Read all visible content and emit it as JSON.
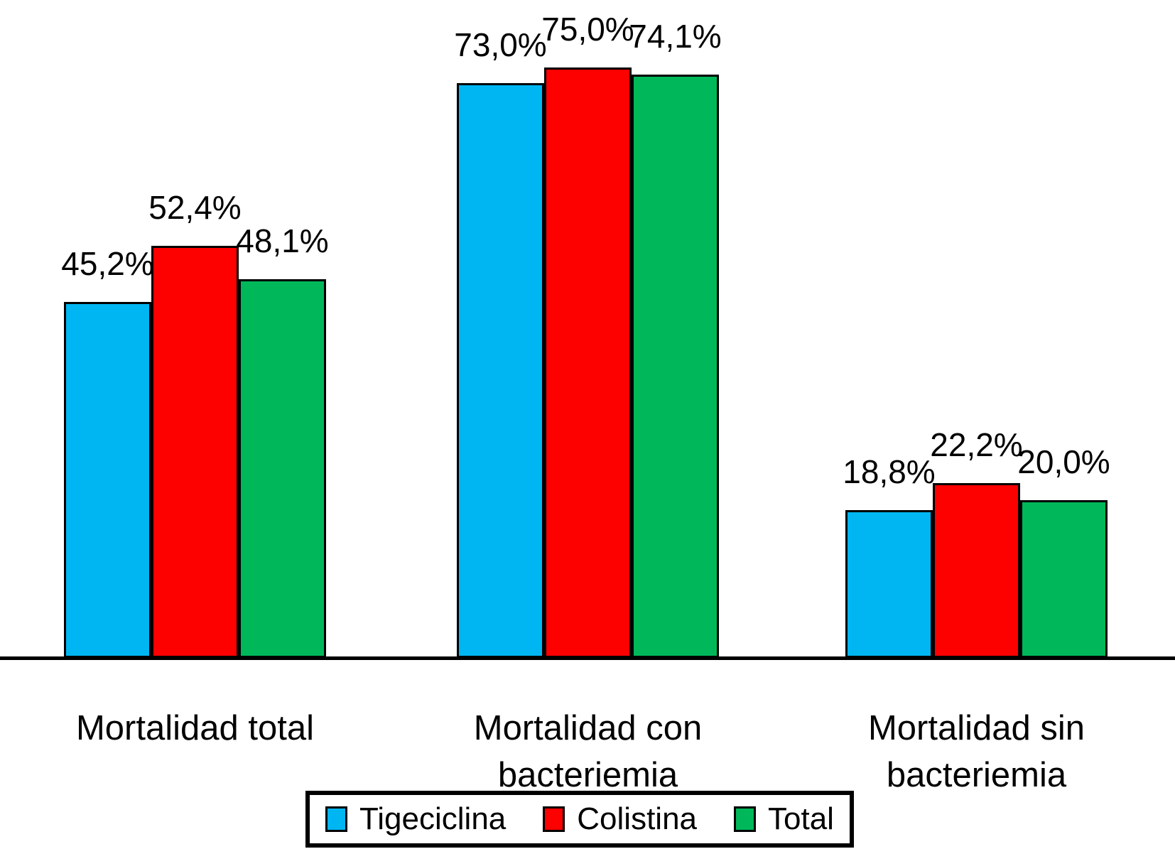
{
  "chart_data": {
    "type": "bar",
    "title": "",
    "xlabel": "",
    "ylabel": "",
    "ylim": [
      0,
      83.6
    ],
    "grid": false,
    "legend_position": "bottom",
    "value_suffix": "%",
    "decimal_separator": ",",
    "background_color": "#FFFFFF",
    "axis_color": "#000000",
    "bar_outline_color": "#000000",
    "categories": [
      "Mortalidad total",
      "Mortalidad con bacteriemia",
      "Mortalidad sin bacteriemia"
    ],
    "categories_lines": [
      [
        "Mortalidad total"
      ],
      [
        "Mortalidad con",
        "bacteriemia"
      ],
      [
        "Mortalidad sin",
        "bacteriemia"
      ]
    ],
    "series": [
      {
        "name": "Tigeciclina",
        "color": "#00B6F2",
        "values": [
          45.2,
          73.0,
          18.8
        ],
        "value_labels": [
          "45,2%",
          "73,0%",
          "18,8%"
        ]
      },
      {
        "name": "Colistina",
        "color": "#FD0000",
        "values": [
          52.4,
          75.0,
          22.2
        ],
        "value_labels": [
          "52,4%",
          "75,0%",
          "22,2%"
        ]
      },
      {
        "name": "Total",
        "color": "#00B85A",
        "values": [
          48.1,
          74.1,
          20.0
        ],
        "value_labels": [
          "48,1%",
          "74,1%",
          "20,0%"
        ]
      }
    ]
  },
  "legend": {
    "items": [
      {
        "label": "Tigeciclina",
        "color": "#00B6F2"
      },
      {
        "label": "Colistina",
        "color": "#FD0000"
      },
      {
        "label": "Total",
        "color": "#00B85A"
      }
    ]
  }
}
